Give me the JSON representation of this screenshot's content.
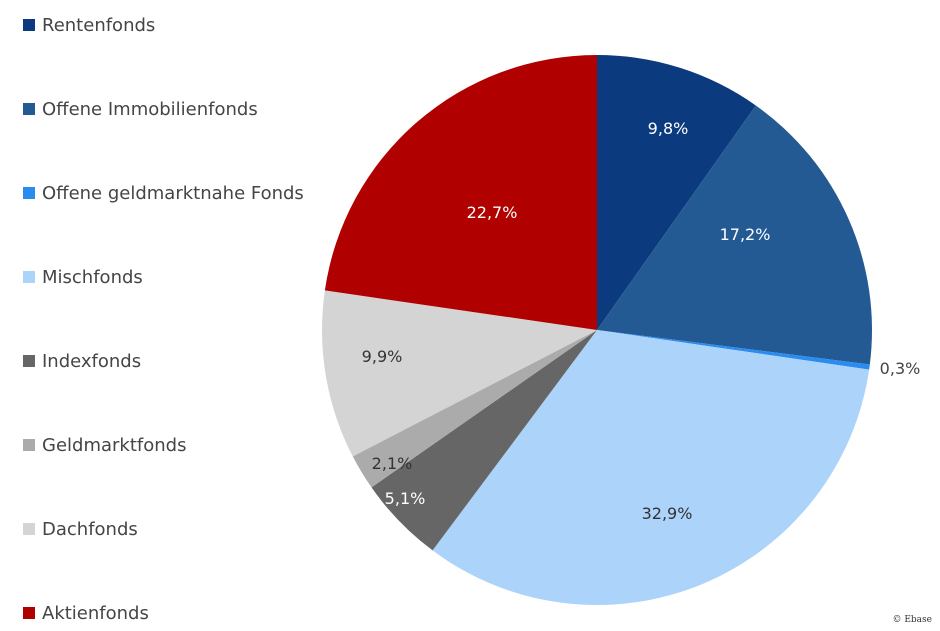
{
  "chart_data": {
    "type": "pie",
    "title": "",
    "start": "top",
    "direction": "clockwise",
    "slices": [
      {
        "name": "Rentenfonds",
        "value": 9.8,
        "label": "9,8%",
        "color": "#0b3a7e"
      },
      {
        "name": "Offene Immobilienfonds",
        "value": 17.2,
        "label": "17,2%",
        "color": "#245a94"
      },
      {
        "name": "Offene geldmarktnahe Fonds",
        "value": 0.3,
        "label": "0,3%",
        "color": "#2b8cf0"
      },
      {
        "name": "Mischfonds",
        "value": 32.9,
        "label": "32,9%",
        "color": "#acd3fa"
      },
      {
        "name": "Indexfonds",
        "value": 5.1,
        "label": "5,1%",
        "color": "#666666"
      },
      {
        "name": "Geldmarktfonds",
        "value": 2.1,
        "label": "2,1%",
        "color": "#ababab"
      },
      {
        "name": "Dachfonds",
        "value": 9.9,
        "label": "9,9%",
        "color": "#d4d4d4"
      },
      {
        "name": "Aktienfonds",
        "value": 22.7,
        "label": "22,7%",
        "color": "#b00000"
      }
    ],
    "legend_position": "left"
  },
  "copyright": "© Ebase"
}
